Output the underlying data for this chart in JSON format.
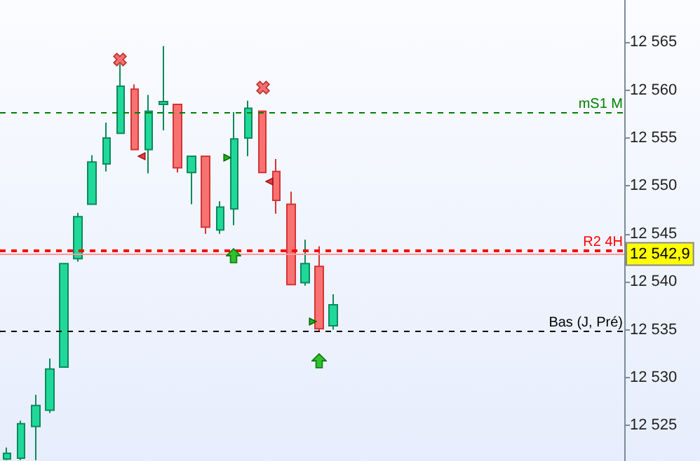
{
  "chart_data": {
    "type": "candlestick",
    "categories": [
      null,
      null,
      null,
      null,
      null,
      null,
      null,
      null,
      null,
      null,
      null,
      null,
      null,
      null,
      null,
      null,
      null,
      null,
      null,
      null,
      null,
      null,
      null,
      null,
      null,
      null,
      null,
      null,
      null,
      null,
      null,
      null,
      null,
      null,
      null,
      null,
      null,
      null,
      null,
      null,
      null,
      null,
      null,
      null
    ],
    "ohlc": [
      [
        12521.5,
        12522.7,
        12521.4,
        12522.1
      ],
      [
        12521.6,
        12525.5,
        12521.4,
        12525.2
      ],
      [
        12524.9,
        12528.2,
        12521.4,
        12527.1
      ],
      [
        12526.6,
        12532.0,
        12526.3,
        12530.9
      ],
      [
        12531.1,
        12541.9,
        12531.1,
        12541.9
      ],
      [
        12542.4,
        12547.2,
        12542.1,
        12546.8
      ],
      [
        12548.1,
        12553.2,
        12548.1,
        12552.5
      ],
      [
        12552.3,
        12556.6,
        12551.5,
        12555.0
      ],
      [
        12555.5,
        12562.7,
        12555.5,
        12560.4
      ],
      [
        12560.1,
        12560.6,
        12553.8,
        12553.8
      ],
      [
        12553.8,
        12559.5,
        12551.3,
        12557.8
      ],
      [
        12558.5,
        12564.6,
        12555.8,
        12558.8
      ],
      [
        12558.5,
        12558.5,
        12551.4,
        12551.9
      ],
      [
        12551.4,
        12553.1,
        12548.1,
        12553.1
      ],
      [
        12553.1,
        12553.1,
        12545.0,
        12545.7
      ],
      [
        12545.4,
        12548.4,
        12545.0,
        12547.8
      ],
      [
        12547.6,
        12557.7,
        12545.9,
        12554.9
      ],
      [
        12555.0,
        12558.9,
        12553.1,
        12558.1
      ],
      [
        12557.8,
        12557.8,
        12551.4,
        12551.4
      ],
      [
        12551.5,
        12552.8,
        12547.1,
        12548.5
      ],
      [
        12548.1,
        12549.4,
        12539.7,
        12539.7
      ],
      [
        12539.9,
        12544.4,
        12539.6,
        12541.9
      ],
      [
        12541.6,
        12543.7,
        12534.8,
        12535.1
      ],
      [
        12535.4,
        12538.7,
        12535.0,
        12537.6
      ],
      null,
      null,
      null,
      null,
      null,
      null,
      null,
      null,
      null,
      null,
      null,
      null,
      null,
      null,
      null,
      null,
      null,
      null,
      null,
      null
    ],
    "ylim": [
      12521.3,
      12569.4
    ],
    "yticks": [
      {
        "value": 12525,
        "label": "12 525"
      },
      {
        "value": 12530,
        "label": "12 530"
      },
      {
        "value": 12535,
        "label": "12 535"
      },
      {
        "value": 12540,
        "label": "12 540"
      },
      {
        "value": 12545,
        "label": "12 545"
      },
      {
        "value": 12550,
        "label": "12 550"
      },
      {
        "value": 12555,
        "label": "12 555"
      },
      {
        "value": 12560,
        "label": "12 560"
      },
      {
        "value": 12565,
        "label": "12 565"
      }
    ],
    "ref_lines": [
      {
        "axis": "y",
        "value": 12557.6,
        "label": "mS1 M",
        "color": "#008000",
        "line_style": "dashed"
      },
      {
        "axis": "y",
        "value": 12543.2,
        "label": "R2 4H",
        "color": "#ff0000",
        "line_style": "dashed"
      },
      {
        "axis": "y",
        "value": 12542.9,
        "label": "12 542,9",
        "color": "#ff9999",
        "line_style": "solid"
      },
      {
        "axis": "y",
        "value": 12534.8,
        "label": "Bas (J, Pré)",
        "color": "#000000",
        "line_style": "dashed"
      }
    ],
    "tick_labels": "y",
    "grid": false
  }
}
